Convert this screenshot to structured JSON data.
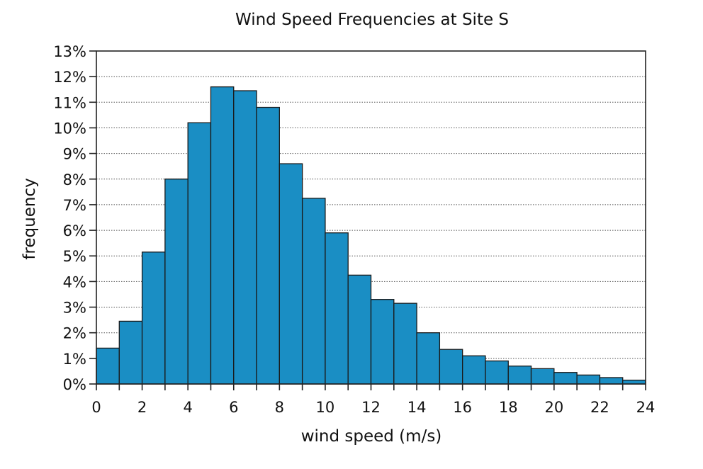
{
  "chart_data": {
    "type": "bar",
    "title": "Wind Speed Frequencies at Site S",
    "xlabel": "wind speed (m/s)",
    "ylabel": "frequency",
    "xlim": [
      0,
      24
    ],
    "ylim": [
      0,
      13
    ],
    "bin_width": 1,
    "x_ticks": [
      0,
      2,
      4,
      6,
      8,
      10,
      12,
      14,
      16,
      18,
      20,
      22,
      24
    ],
    "x_tick_labels": [
      "0",
      "2",
      "4",
      "6",
      "8",
      "10",
      "12",
      "14",
      "16",
      "18",
      "20",
      "22",
      "24"
    ],
    "y_ticks": [
      0,
      1,
      2,
      3,
      4,
      5,
      6,
      7,
      8,
      9,
      10,
      11,
      12,
      13
    ],
    "y_tick_labels": [
      "0%",
      "1%",
      "2%",
      "3%",
      "4%",
      "5%",
      "6%",
      "7%",
      "8%",
      "9%",
      "10%",
      "11%",
      "12%",
      "13%"
    ],
    "grid": "horizontal dotted",
    "bar_color": "#1a8ec4",
    "bins": [
      {
        "x0": 0,
        "x1": 1,
        "value": 1.4
      },
      {
        "x0": 1,
        "x1": 2,
        "value": 2.45
      },
      {
        "x0": 2,
        "x1": 3,
        "value": 5.15
      },
      {
        "x0": 3,
        "x1": 4,
        "value": 8.0
      },
      {
        "x0": 4,
        "x1": 5,
        "value": 10.2
      },
      {
        "x0": 5,
        "x1": 6,
        "value": 11.6
      },
      {
        "x0": 6,
        "x1": 7,
        "value": 11.45
      },
      {
        "x0": 7,
        "x1": 8,
        "value": 10.8
      },
      {
        "x0": 8,
        "x1": 9,
        "value": 8.6
      },
      {
        "x0": 9,
        "x1": 10,
        "value": 7.25
      },
      {
        "x0": 10,
        "x1": 11,
        "value": 5.9
      },
      {
        "x0": 11,
        "x1": 12,
        "value": 4.25
      },
      {
        "x0": 12,
        "x1": 13,
        "value": 3.3
      },
      {
        "x0": 13,
        "x1": 14,
        "value": 3.15
      },
      {
        "x0": 14,
        "x1": 15,
        "value": 2.0
      },
      {
        "x0": 15,
        "x1": 16,
        "value": 1.35
      },
      {
        "x0": 16,
        "x1": 17,
        "value": 1.1
      },
      {
        "x0": 17,
        "x1": 18,
        "value": 0.9
      },
      {
        "x0": 18,
        "x1": 19,
        "value": 0.7
      },
      {
        "x0": 19,
        "x1": 20,
        "value": 0.6
      },
      {
        "x0": 20,
        "x1": 21,
        "value": 0.45
      },
      {
        "x0": 21,
        "x1": 22,
        "value": 0.35
      },
      {
        "x0": 22,
        "x1": 23,
        "value": 0.25
      },
      {
        "x0": 23,
        "x1": 24,
        "value": 0.15
      }
    ]
  }
}
